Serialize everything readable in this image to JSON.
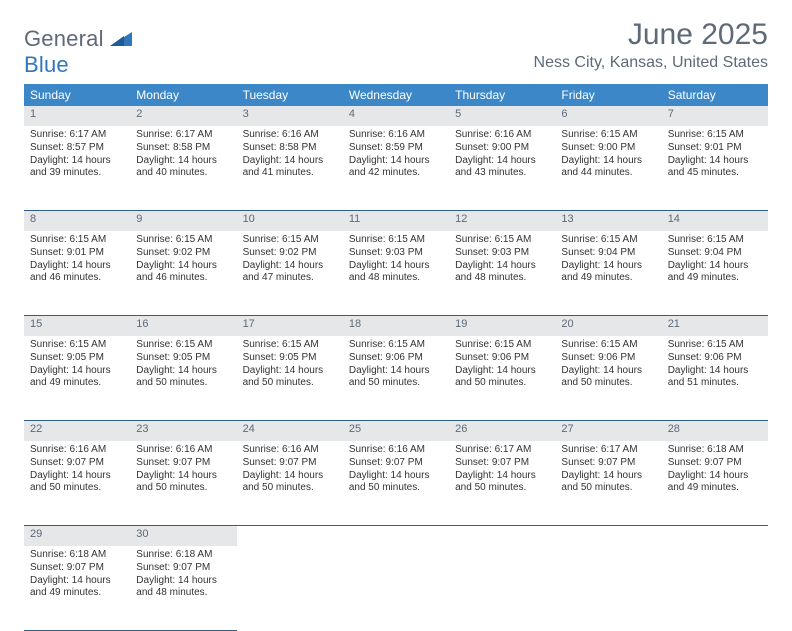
{
  "logo": {
    "word1": "General",
    "word2": "Blue",
    "mark_color": "#2f77bb",
    "text_gray": "#5e6a78"
  },
  "title": "June 2025",
  "location": "Ness City, Kansas, United States",
  "colors": {
    "header_bg": "#3b87c8",
    "header_fg": "#ffffff",
    "daynum_bg": "#e5e7e9",
    "daynum_fg": "#5e6a78",
    "rule": "#2f5e8a",
    "body_text": "#333333"
  },
  "weekdays": [
    "Sunday",
    "Monday",
    "Tuesday",
    "Wednesday",
    "Thursday",
    "Friday",
    "Saturday"
  ],
  "labels": {
    "sunrise": "Sunrise:",
    "sunset": "Sunset:",
    "daylight": "Daylight:"
  },
  "days": [
    {
      "n": 1,
      "sr": "6:17 AM",
      "ss": "8:57 PM",
      "dl": "14 hours and 39 minutes."
    },
    {
      "n": 2,
      "sr": "6:17 AM",
      "ss": "8:58 PM",
      "dl": "14 hours and 40 minutes."
    },
    {
      "n": 3,
      "sr": "6:16 AM",
      "ss": "8:58 PM",
      "dl": "14 hours and 41 minutes."
    },
    {
      "n": 4,
      "sr": "6:16 AM",
      "ss": "8:59 PM",
      "dl": "14 hours and 42 minutes."
    },
    {
      "n": 5,
      "sr": "6:16 AM",
      "ss": "9:00 PM",
      "dl": "14 hours and 43 minutes."
    },
    {
      "n": 6,
      "sr": "6:15 AM",
      "ss": "9:00 PM",
      "dl": "14 hours and 44 minutes."
    },
    {
      "n": 7,
      "sr": "6:15 AM",
      "ss": "9:01 PM",
      "dl": "14 hours and 45 minutes."
    },
    {
      "n": 8,
      "sr": "6:15 AM",
      "ss": "9:01 PM",
      "dl": "14 hours and 46 minutes."
    },
    {
      "n": 9,
      "sr": "6:15 AM",
      "ss": "9:02 PM",
      "dl": "14 hours and 46 minutes."
    },
    {
      "n": 10,
      "sr": "6:15 AM",
      "ss": "9:02 PM",
      "dl": "14 hours and 47 minutes."
    },
    {
      "n": 11,
      "sr": "6:15 AM",
      "ss": "9:03 PM",
      "dl": "14 hours and 48 minutes."
    },
    {
      "n": 12,
      "sr": "6:15 AM",
      "ss": "9:03 PM",
      "dl": "14 hours and 48 minutes."
    },
    {
      "n": 13,
      "sr": "6:15 AM",
      "ss": "9:04 PM",
      "dl": "14 hours and 49 minutes."
    },
    {
      "n": 14,
      "sr": "6:15 AM",
      "ss": "9:04 PM",
      "dl": "14 hours and 49 minutes."
    },
    {
      "n": 15,
      "sr": "6:15 AM",
      "ss": "9:05 PM",
      "dl": "14 hours and 49 minutes."
    },
    {
      "n": 16,
      "sr": "6:15 AM",
      "ss": "9:05 PM",
      "dl": "14 hours and 50 minutes."
    },
    {
      "n": 17,
      "sr": "6:15 AM",
      "ss": "9:05 PM",
      "dl": "14 hours and 50 minutes."
    },
    {
      "n": 18,
      "sr": "6:15 AM",
      "ss": "9:06 PM",
      "dl": "14 hours and 50 minutes."
    },
    {
      "n": 19,
      "sr": "6:15 AM",
      "ss": "9:06 PM",
      "dl": "14 hours and 50 minutes."
    },
    {
      "n": 20,
      "sr": "6:15 AM",
      "ss": "9:06 PM",
      "dl": "14 hours and 50 minutes."
    },
    {
      "n": 21,
      "sr": "6:15 AM",
      "ss": "9:06 PM",
      "dl": "14 hours and 51 minutes."
    },
    {
      "n": 22,
      "sr": "6:16 AM",
      "ss": "9:07 PM",
      "dl": "14 hours and 50 minutes."
    },
    {
      "n": 23,
      "sr": "6:16 AM",
      "ss": "9:07 PM",
      "dl": "14 hours and 50 minutes."
    },
    {
      "n": 24,
      "sr": "6:16 AM",
      "ss": "9:07 PM",
      "dl": "14 hours and 50 minutes."
    },
    {
      "n": 25,
      "sr": "6:16 AM",
      "ss": "9:07 PM",
      "dl": "14 hours and 50 minutes."
    },
    {
      "n": 26,
      "sr": "6:17 AM",
      "ss": "9:07 PM",
      "dl": "14 hours and 50 minutes."
    },
    {
      "n": 27,
      "sr": "6:17 AM",
      "ss": "9:07 PM",
      "dl": "14 hours and 50 minutes."
    },
    {
      "n": 28,
      "sr": "6:18 AM",
      "ss": "9:07 PM",
      "dl": "14 hours and 49 minutes."
    },
    {
      "n": 29,
      "sr": "6:18 AM",
      "ss": "9:07 PM",
      "dl": "14 hours and 49 minutes."
    },
    {
      "n": 30,
      "sr": "6:18 AM",
      "ss": "9:07 PM",
      "dl": "14 hours and 48 minutes."
    }
  ],
  "first_weekday_index": 0,
  "num_days": 30
}
